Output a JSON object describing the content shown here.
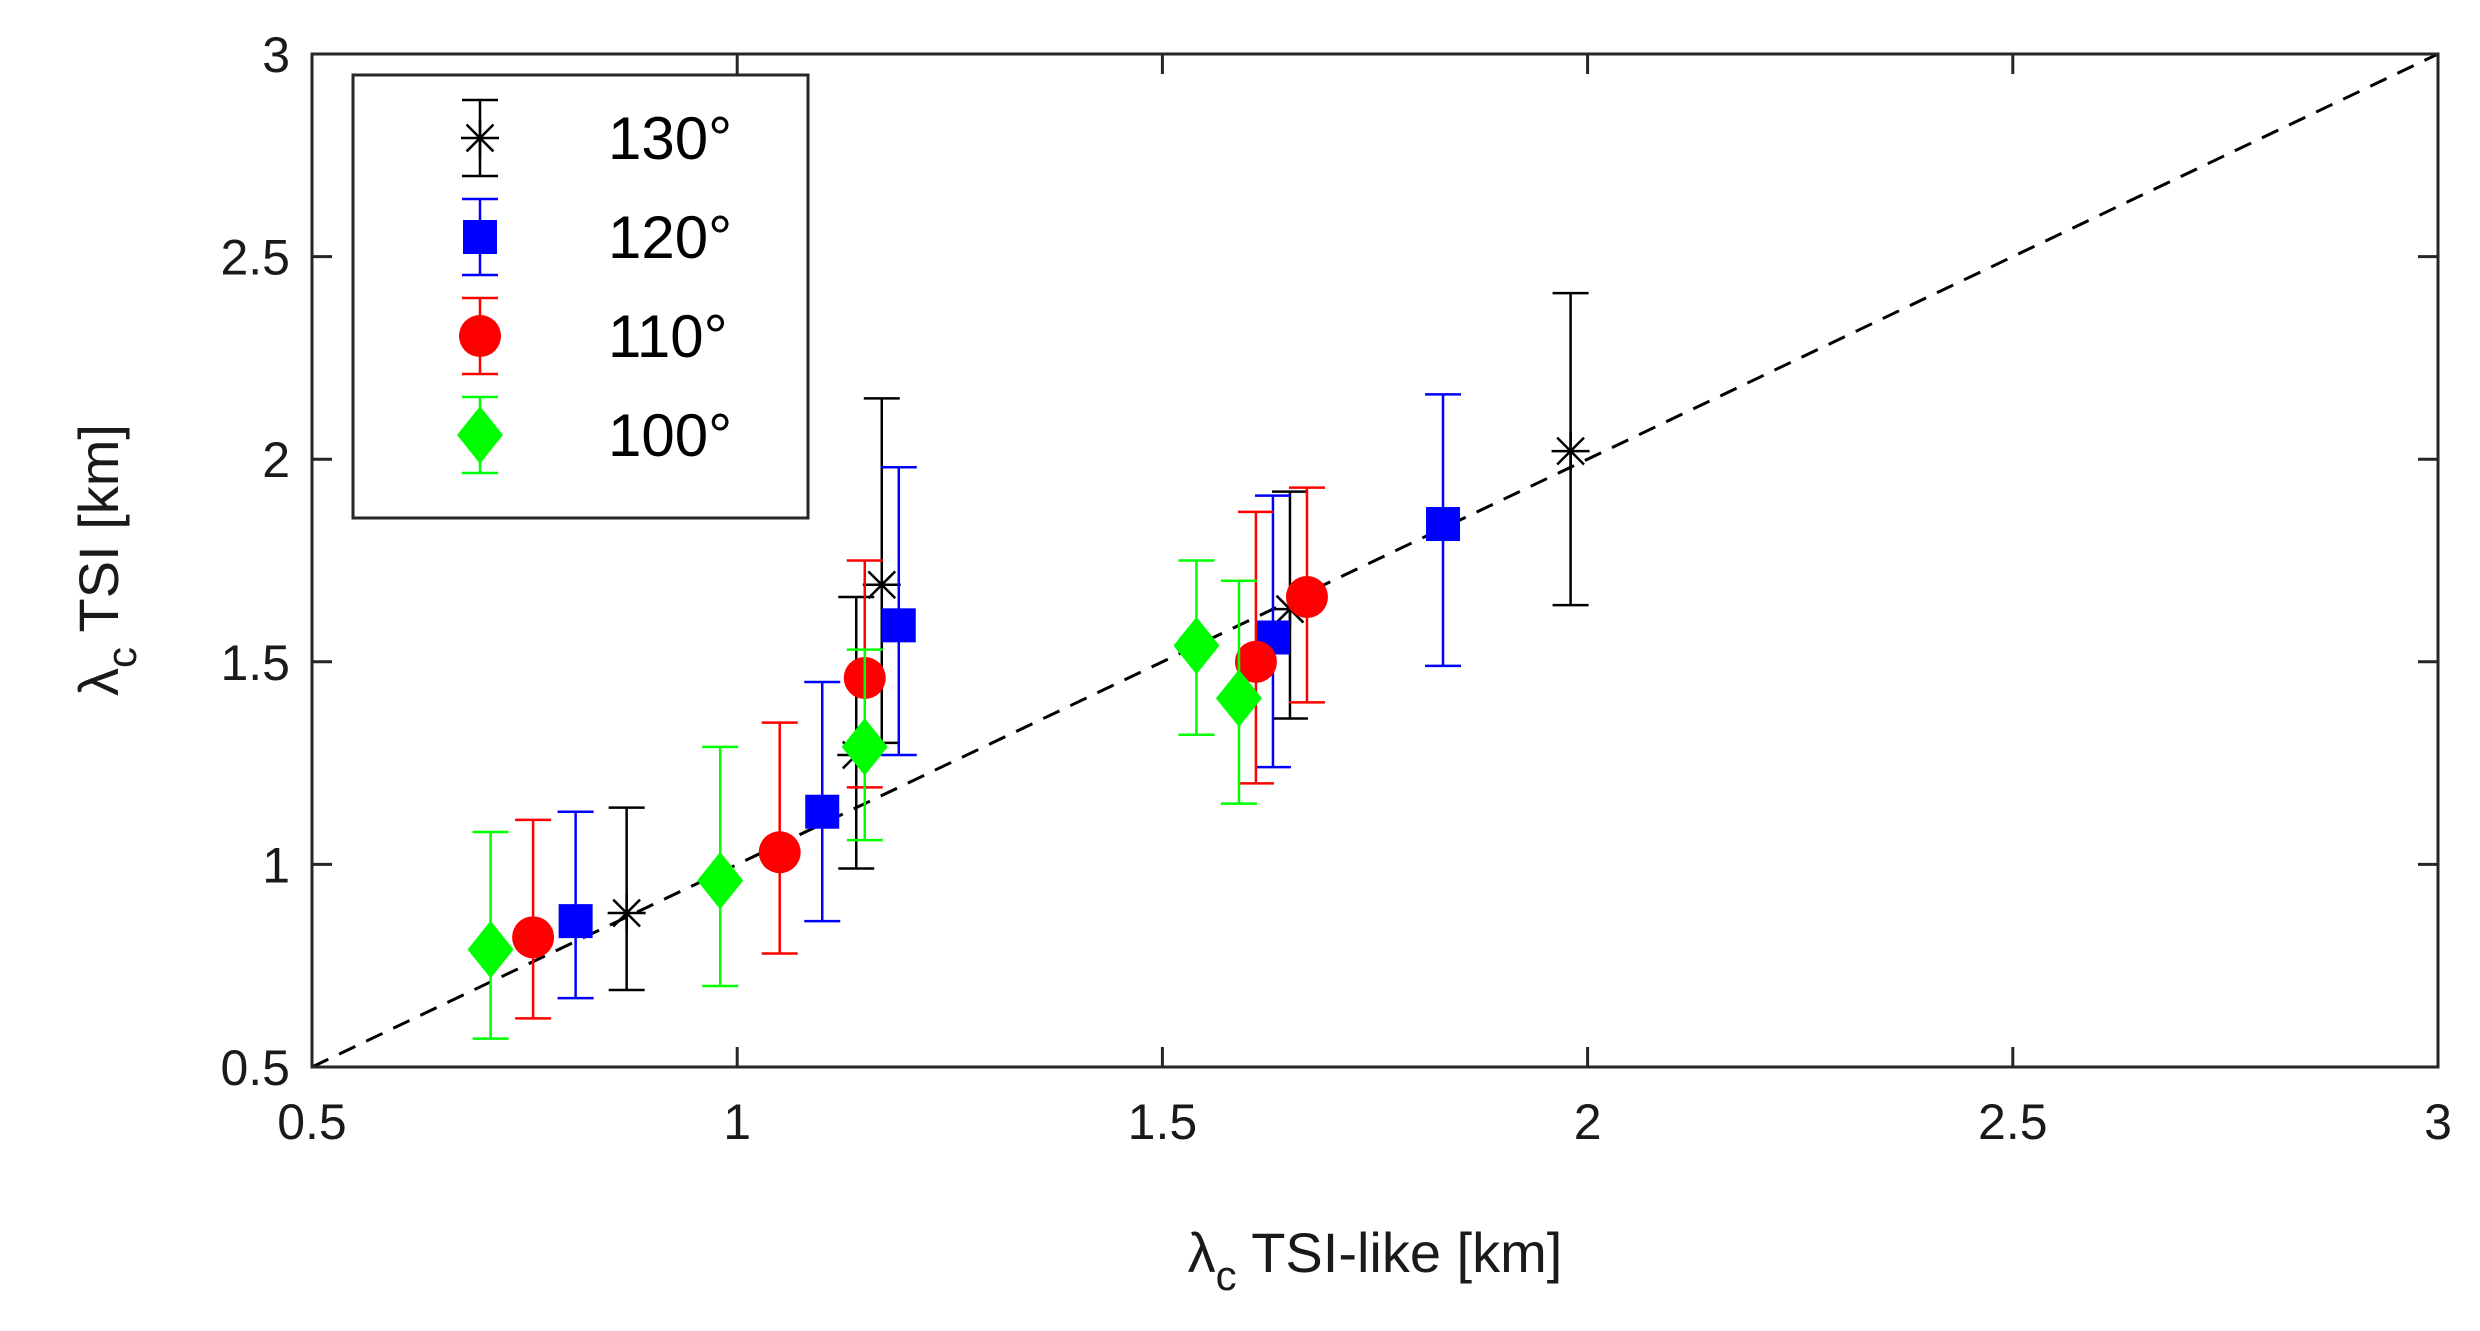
{
  "chart_data": {
    "type": "scatter",
    "title": "",
    "xlabel": {
      "symbol": "λ",
      "subscript": "c",
      "text": " TSI-like  [km]"
    },
    "ylabel": {
      "symbol": "λ",
      "subscript": "c",
      "text": " TSI [km]"
    },
    "xlim": [
      0.5,
      3
    ],
    "ylim": [
      0.5,
      3
    ],
    "xticks": [
      0.5,
      1,
      1.5,
      2,
      2.5,
      3
    ],
    "yticks": [
      0.5,
      1,
      1.5,
      2,
      2.5,
      3
    ],
    "xtick_labels": [
      "0.5",
      "1",
      "1.5",
      "2",
      "2.5",
      "3"
    ],
    "ytick_labels": [
      "0.5",
      "1",
      "1.5",
      "2",
      "2.5",
      "3"
    ],
    "grid": false,
    "legend_position": "top-left",
    "reference_line": {
      "style": "dashed",
      "color": "#000000",
      "from": [
        0.5,
        0.5
      ],
      "to": [
        3,
        3
      ]
    },
    "series": [
      {
        "name": "130°",
        "marker": "asterisk",
        "color": "#000000",
        "points": [
          {
            "x": 0.87,
            "y": 0.88,
            "ylo": 0.69,
            "yhi": 1.14
          },
          {
            "x": 1.14,
            "y": 1.27,
            "ylo": 0.99,
            "yhi": 1.66
          },
          {
            "x": 1.17,
            "y": 1.69,
            "ylo": 1.3,
            "yhi": 2.15
          },
          {
            "x": 1.65,
            "y": 1.63,
            "ylo": 1.36,
            "yhi": 1.92
          },
          {
            "x": 1.98,
            "y": 2.02,
            "ylo": 1.64,
            "yhi": 2.41
          }
        ]
      },
      {
        "name": "120°",
        "marker": "square",
        "color": "#0000ff",
        "points": [
          {
            "x": 0.81,
            "y": 0.86,
            "ylo": 0.67,
            "yhi": 1.13
          },
          {
            "x": 1.1,
            "y": 1.13,
            "ylo": 0.86,
            "yhi": 1.45
          },
          {
            "x": 1.19,
            "y": 1.59,
            "ylo": 1.27,
            "yhi": 1.98
          },
          {
            "x": 1.63,
            "y": 1.56,
            "ylo": 1.24,
            "yhi": 1.91
          },
          {
            "x": 1.83,
            "y": 1.84,
            "ylo": 1.49,
            "yhi": 2.16
          }
        ]
      },
      {
        "name": "110°",
        "marker": "circle",
        "color": "#ff0000",
        "points": [
          {
            "x": 0.76,
            "y": 0.82,
            "ylo": 0.62,
            "yhi": 1.11
          },
          {
            "x": 1.05,
            "y": 1.03,
            "ylo": 0.78,
            "yhi": 1.35
          },
          {
            "x": 1.15,
            "y": 1.46,
            "ylo": 1.19,
            "yhi": 1.75
          },
          {
            "x": 1.61,
            "y": 1.5,
            "ylo": 1.2,
            "yhi": 1.87
          },
          {
            "x": 1.67,
            "y": 1.66,
            "ylo": 1.4,
            "yhi": 1.93
          }
        ]
      },
      {
        "name": "100°",
        "marker": "diamond",
        "color": "#00ff00",
        "points": [
          {
            "x": 0.71,
            "y": 0.79,
            "ylo": 0.57,
            "yhi": 1.08
          },
          {
            "x": 0.98,
            "y": 0.96,
            "ylo": 0.7,
            "yhi": 1.29
          },
          {
            "x": 1.15,
            "y": 1.29,
            "ylo": 1.06,
            "yhi": 1.53
          },
          {
            "x": 1.54,
            "y": 1.54,
            "ylo": 1.32,
            "yhi": 1.75
          },
          {
            "x": 1.59,
            "y": 1.41,
            "ylo": 1.15,
            "yhi": 1.7
          }
        ]
      }
    ]
  }
}
